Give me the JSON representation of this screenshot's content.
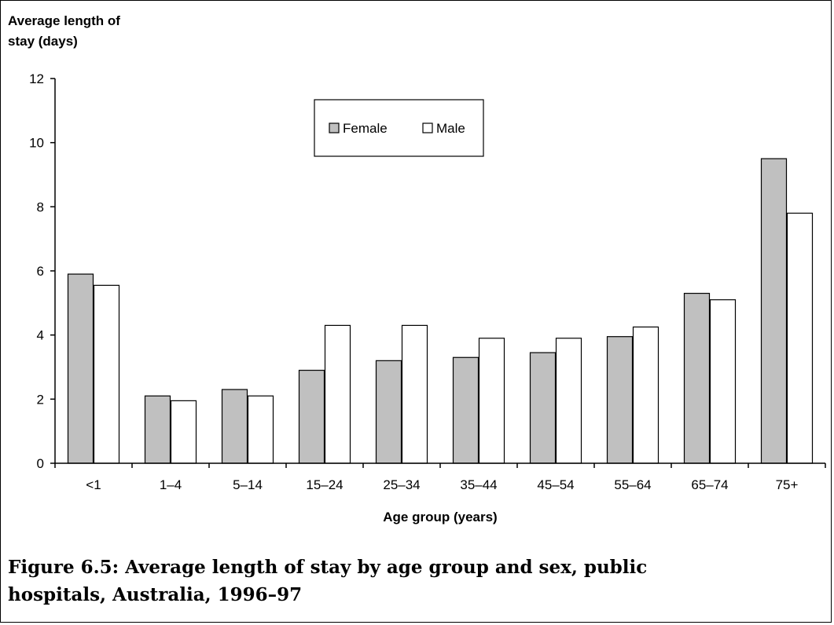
{
  "caption": {
    "line1": "Figure 6.5: Average length of stay by age group and sex, public",
    "line2": "hospitals, Australia, 1996–97"
  },
  "chart_data": {
    "type": "bar",
    "ylabel_lines": [
      "Average length of",
      "stay (days)"
    ],
    "xlabel": "Age group (years)",
    "categories": [
      "<1",
      "1–4",
      "5–14",
      "15–24",
      "25–34",
      "35–44",
      "45–54",
      "55–64",
      "65–74",
      "75+"
    ],
    "series": [
      {
        "name": "Female",
        "color": "#c0c0c0",
        "values": [
          5.9,
          2.1,
          2.3,
          2.9,
          3.2,
          3.3,
          3.45,
          3.95,
          5.3,
          9.5
        ]
      },
      {
        "name": "Male",
        "color": "#ffffff",
        "values": [
          5.55,
          1.95,
          2.1,
          4.3,
          4.3,
          3.9,
          3.9,
          4.25,
          5.1,
          7.8
        ]
      }
    ],
    "ylim": [
      0,
      12
    ],
    "yticks": [
      "0",
      "2",
      "4",
      "6",
      "8",
      "10",
      "12"
    ],
    "legend": "top-center, boxed",
    "grid": false
  }
}
